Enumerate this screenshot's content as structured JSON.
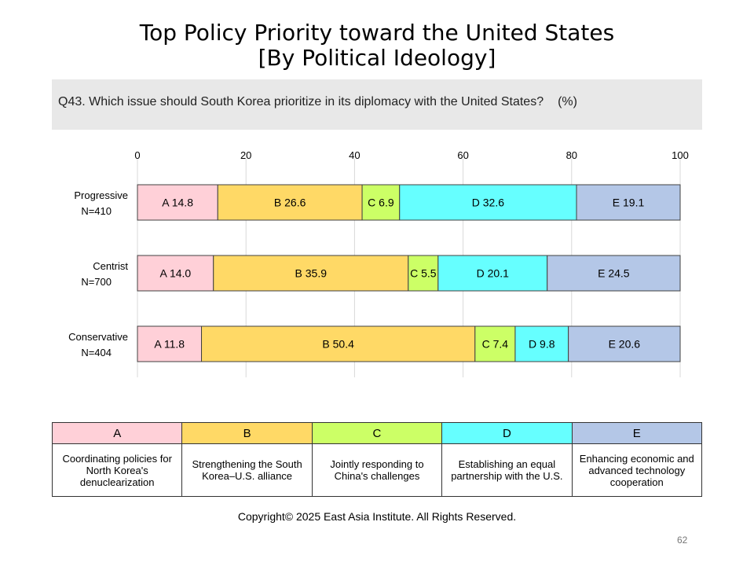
{
  "title_line1": "Top Policy Priority toward the United States",
  "title_line2": "[By Political Ideology]",
  "question": "Q43. Which issue should South Korea prioritize in its diplomacy with the United States?",
  "unit": "(%)",
  "chart_data": {
    "type": "bar",
    "orientation": "horizontal-stacked",
    "title": "Top Policy Priority toward the United States [By Political Ideology]",
    "xlim": [
      0,
      100
    ],
    "x_ticks": [
      0,
      20,
      40,
      60,
      80,
      100
    ],
    "grid": true,
    "groups": [
      {
        "name": "Progressive",
        "n_label": "N=410"
      },
      {
        "name": "Centrist",
        "n_label": "N=700"
      },
      {
        "name": "Conservative",
        "n_label": "N=404"
      }
    ],
    "series": [
      {
        "name": "A",
        "color": "#ffd0d8",
        "values": [
          14.8,
          14.0,
          11.8
        ]
      },
      {
        "name": "B",
        "color": "#ffd966",
        "values": [
          26.6,
          35.9,
          50.4
        ]
      },
      {
        "name": "C",
        "color": "#ccff66",
        "values": [
          6.9,
          5.5,
          7.4
        ]
      },
      {
        "name": "D",
        "color": "#66ffff",
        "values": [
          32.6,
          20.1,
          9.8
        ]
      },
      {
        "name": "E",
        "color": "#b4c7e7",
        "values": [
          19.1,
          24.5,
          20.6
        ]
      }
    ]
  },
  "legend": {
    "items": [
      {
        "key": "A",
        "color": "#ffd0d8",
        "description": "Coordinating policies for North Korea's denuclearization"
      },
      {
        "key": "B",
        "color": "#ffd966",
        "description": "Strengthening the South Korea–U.S. alliance"
      },
      {
        "key": "C",
        "color": "#ccff66",
        "description": "Jointly responding to China's challenges"
      },
      {
        "key": "D",
        "color": "#66ffff",
        "description": "Establishing an equal partnership with the U.S."
      },
      {
        "key": "E",
        "color": "#b4c7e7",
        "description": "Enhancing economic and advanced technology cooperation"
      }
    ]
  },
  "copyright": "Copyright© 2025 East Asia Institute. All Rights Reserved.",
  "page_number": "62"
}
